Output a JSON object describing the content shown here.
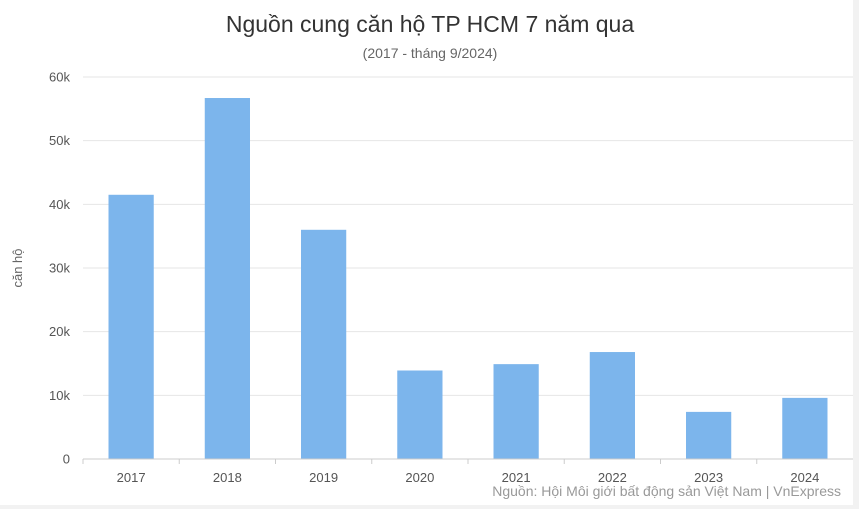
{
  "chart_data": {
    "type": "bar",
    "title": "Nguồn cung căn hộ TP HCM 7 năm qua",
    "subtitle": "(2017 - tháng 9/2024)",
    "xlabel": "",
    "ylabel": "căn hộ",
    "categories": [
      "2017",
      "2018",
      "2019",
      "2020",
      "2021",
      "2022",
      "2023",
      "2024"
    ],
    "values": [
      41500,
      56700,
      36000,
      13900,
      14900,
      16800,
      7400,
      9600
    ],
    "ylim": [
      0,
      60000
    ],
    "yticks": [
      0,
      10000,
      20000,
      30000,
      40000,
      50000,
      60000
    ],
    "ytick_labels": [
      "0",
      "10k",
      "20k",
      "30k",
      "40k",
      "50k",
      "60k"
    ],
    "grid": true,
    "legend": "none",
    "bar_color": "#7cb5ec",
    "source": "Nguồn: Hội Môi giới bất động sản Việt Nam | VnExpress"
  }
}
